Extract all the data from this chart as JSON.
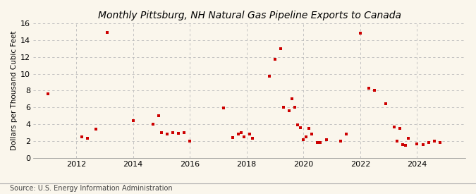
{
  "title": "Pittsburg, NH Natural Gas Pipeline Exports to Canada",
  "title_prefix": "Monthly ",
  "ylabel": "Dollars per Thousand Cubic Feet",
  "source": "Source: U.S. Energy Information Administration",
  "background_color": "#faf6ec",
  "plot_bg_color": "#faf6ec",
  "marker_color": "#cc0000",
  "grid_color": "#bbbbbb",
  "xlim": [
    2010.5,
    2025.7
  ],
  "ylim": [
    0,
    16
  ],
  "yticks": [
    0,
    2,
    4,
    6,
    8,
    10,
    12,
    14,
    16
  ],
  "xticks": [
    2012,
    2014,
    2016,
    2018,
    2020,
    2022,
    2024
  ],
  "points": [
    [
      2011.0,
      7.6
    ],
    [
      2012.2,
      2.5
    ],
    [
      2012.4,
      2.3
    ],
    [
      2012.7,
      3.4
    ],
    [
      2013.1,
      14.9
    ],
    [
      2014.0,
      4.4
    ],
    [
      2014.7,
      4.0
    ],
    [
      2014.9,
      5.0
    ],
    [
      2015.0,
      3.0
    ],
    [
      2015.2,
      2.8
    ],
    [
      2015.4,
      3.0
    ],
    [
      2015.6,
      2.9
    ],
    [
      2015.8,
      3.0
    ],
    [
      2016.0,
      2.0
    ],
    [
      2017.2,
      5.9
    ],
    [
      2017.5,
      2.4
    ],
    [
      2017.7,
      2.8
    ],
    [
      2017.8,
      3.0
    ],
    [
      2017.9,
      2.5
    ],
    [
      2018.1,
      2.8
    ],
    [
      2018.2,
      2.3
    ],
    [
      2018.8,
      9.7
    ],
    [
      2019.0,
      11.7
    ],
    [
      2019.2,
      13.0
    ],
    [
      2019.3,
      6.0
    ],
    [
      2019.5,
      5.6
    ],
    [
      2019.6,
      7.0
    ],
    [
      2019.7,
      6.0
    ],
    [
      2019.8,
      3.9
    ],
    [
      2019.9,
      3.6
    ],
    [
      2020.0,
      2.2
    ],
    [
      2020.1,
      2.5
    ],
    [
      2020.2,
      3.5
    ],
    [
      2020.3,
      2.8
    ],
    [
      2020.5,
      1.8
    ],
    [
      2020.6,
      1.8
    ],
    [
      2020.8,
      2.2
    ],
    [
      2021.3,
      2.0
    ],
    [
      2021.5,
      2.8
    ],
    [
      2022.0,
      14.8
    ],
    [
      2022.3,
      8.3
    ],
    [
      2022.5,
      8.0
    ],
    [
      2022.9,
      6.4
    ],
    [
      2023.2,
      3.7
    ],
    [
      2023.3,
      2.0
    ],
    [
      2023.4,
      3.5
    ],
    [
      2023.5,
      1.6
    ],
    [
      2023.6,
      1.5
    ],
    [
      2023.7,
      2.3
    ],
    [
      2024.0,
      1.7
    ],
    [
      2024.2,
      1.6
    ],
    [
      2024.4,
      1.8
    ],
    [
      2024.6,
      2.0
    ],
    [
      2024.8,
      1.8
    ]
  ]
}
